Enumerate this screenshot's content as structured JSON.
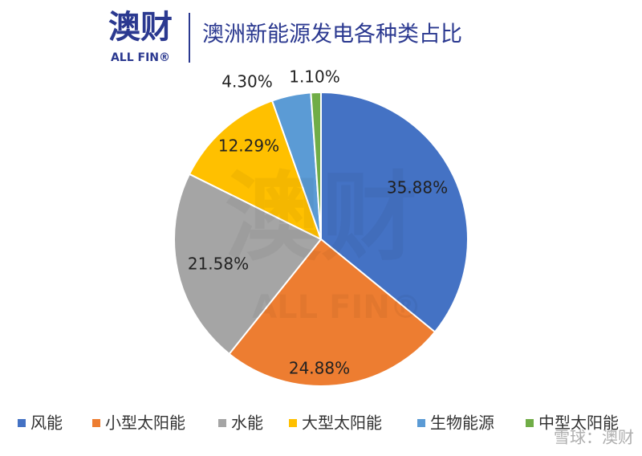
{
  "header": {
    "logo": "澳财",
    "logo_sub": "ALL FIN®"
  },
  "chart_data": {
    "type": "pie",
    "title": "澳洲新能源发电各种类占比",
    "categories": [
      "风能",
      "小型太阳能",
      "水能",
      "大型太阳能",
      "生物能源",
      "中型太阳能"
    ],
    "values": [
      35.88,
      24.88,
      21.58,
      12.29,
      4.3,
      1.1
    ],
    "value_labels": [
      "35.88%",
      "24.88%",
      "21.58%",
      "12.29%",
      "4.30%",
      "1.10%"
    ],
    "colors": [
      "#4472c4",
      "#ed7d31",
      "#a5a5a5",
      "#ffc000",
      "#5b9bd5",
      "#70ad47"
    ],
    "legend": "bottom"
  },
  "watermark": "雪球：澳财"
}
